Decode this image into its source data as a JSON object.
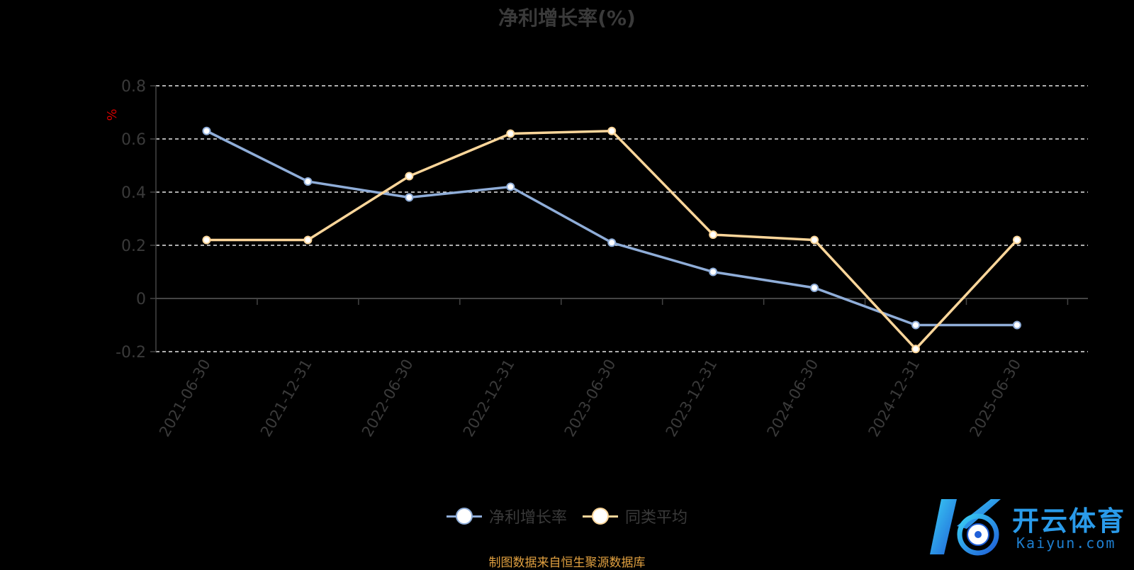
{
  "chart_data": {
    "type": "line",
    "title": "净利增长率(%)",
    "ylabel": "%",
    "categories": [
      "2021-06-30",
      "2021-12-31",
      "2022-06-30",
      "2022-12-31",
      "2023-06-30",
      "2023-12-31",
      "2024-06-30",
      "2024-12-31",
      "2025-06-30"
    ],
    "ylim": [
      -0.2,
      0.8
    ],
    "yticks": [
      -0.2,
      0,
      0.2,
      0.4,
      0.6,
      0.8
    ],
    "ytick_labels": [
      "-0.2",
      "0",
      "0.2",
      "0.4",
      "0.6",
      "0.8"
    ],
    "grid": true,
    "legend": "bottom-center",
    "series": [
      {
        "name": "净利增长率",
        "color": "#8fadd8",
        "values": [
          0.63,
          0.44,
          0.38,
          0.42,
          0.21,
          0.1,
          0.04,
          -0.1,
          -0.1
        ]
      },
      {
        "name": "同类平均",
        "color": "#fcd69a",
        "values": [
          0.22,
          0.22,
          0.46,
          0.62,
          0.63,
          0.24,
          0.22,
          -0.19,
          0.22
        ]
      }
    ]
  },
  "footer": {
    "source": "制图数据来自恒生聚源数据库"
  },
  "watermark": {
    "brand": "开云体育",
    "domain": "Kaiyun.com"
  }
}
